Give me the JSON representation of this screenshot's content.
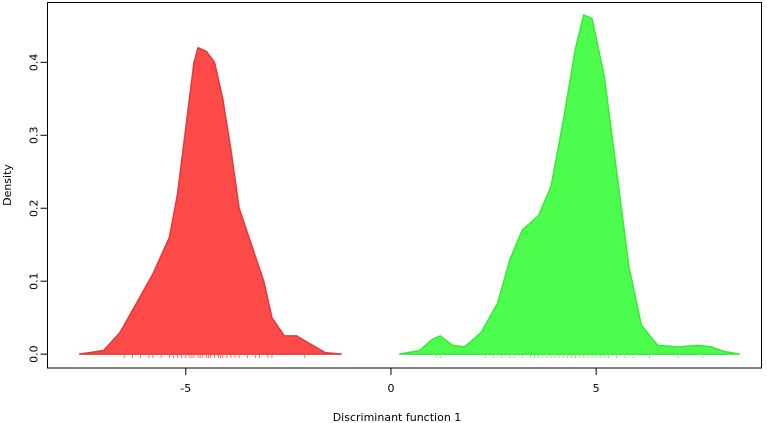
{
  "chart_data": {
    "type": "density",
    "xlabel": "Discriminant function 1",
    "ylabel": "Density",
    "xlim": [
      -8.37,
      9.03
    ],
    "ylim": [
      -0.019,
      0.482
    ],
    "xticks": [
      -5,
      0,
      5
    ],
    "yticks": [
      {
        "value": 0,
        "label": "0.0"
      },
      0.1,
      0.2,
      0.3,
      0.4
    ],
    "series": [
      {
        "color": "#ff4a4a",
        "line_color": "#e03a3a",
        "x": [
          -7.6,
          -7.0,
          -6.6,
          -6.2,
          -5.8,
          -5.4,
          -5.2,
          -5.0,
          -4.8,
          -4.7,
          -4.5,
          -4.3,
          -4.1,
          -3.9,
          -3.7,
          -3.4,
          -3.1,
          -2.9,
          -2.6,
          -2.3,
          -2.0,
          -1.6,
          -1.2
        ],
        "values": [
          0.0,
          0.005,
          0.03,
          0.07,
          0.11,
          0.16,
          0.22,
          0.31,
          0.4,
          0.42,
          0.415,
          0.4,
          0.35,
          0.28,
          0.2,
          0.15,
          0.1,
          0.05,
          0.025,
          0.025,
          0.015,
          0.002,
          0.0
        ],
        "rug": [
          -6.5,
          -6.3,
          -6.1,
          -5.9,
          -5.8,
          -5.6,
          -5.4,
          -5.3,
          -5.2,
          -5.1,
          -5.0,
          -4.9,
          -4.85,
          -4.8,
          -4.7,
          -4.65,
          -4.6,
          -4.5,
          -4.45,
          -4.4,
          -4.3,
          -4.2,
          -4.15,
          -4.1,
          -4.0,
          -3.9,
          -3.8,
          -3.7,
          -3.5,
          -3.3,
          -3.2,
          -3.0,
          -2.9,
          -2.1
        ]
      },
      {
        "color": "#4dfd4d",
        "line_color": "#3ae83a",
        "x": [
          0.2,
          0.7,
          1.0,
          1.2,
          1.5,
          1.8,
          2.2,
          2.6,
          2.9,
          3.2,
          3.6,
          3.9,
          4.2,
          4.5,
          4.7,
          4.9,
          5.2,
          5.5,
          5.8,
          6.1,
          6.5,
          7.0,
          7.5,
          7.8,
          8.1,
          8.5
        ],
        "values": [
          0.0,
          0.005,
          0.02,
          0.025,
          0.012,
          0.01,
          0.03,
          0.07,
          0.13,
          0.17,
          0.19,
          0.23,
          0.32,
          0.42,
          0.465,
          0.46,
          0.38,
          0.25,
          0.12,
          0.04,
          0.012,
          0.01,
          0.012,
          0.01,
          0.004,
          0.0
        ],
        "rug": [
          1.1,
          1.2,
          2.3,
          2.5,
          2.7,
          2.9,
          3.0,
          3.2,
          3.4,
          3.5,
          3.6,
          3.7,
          3.8,
          3.9,
          4.0,
          4.1,
          4.2,
          4.3,
          4.4,
          4.5,
          4.6,
          4.7,
          4.8,
          4.9,
          5.0,
          5.1,
          5.2,
          5.3,
          5.5,
          5.7,
          5.9,
          6.3,
          7.0,
          7.6
        ]
      }
    ]
  }
}
